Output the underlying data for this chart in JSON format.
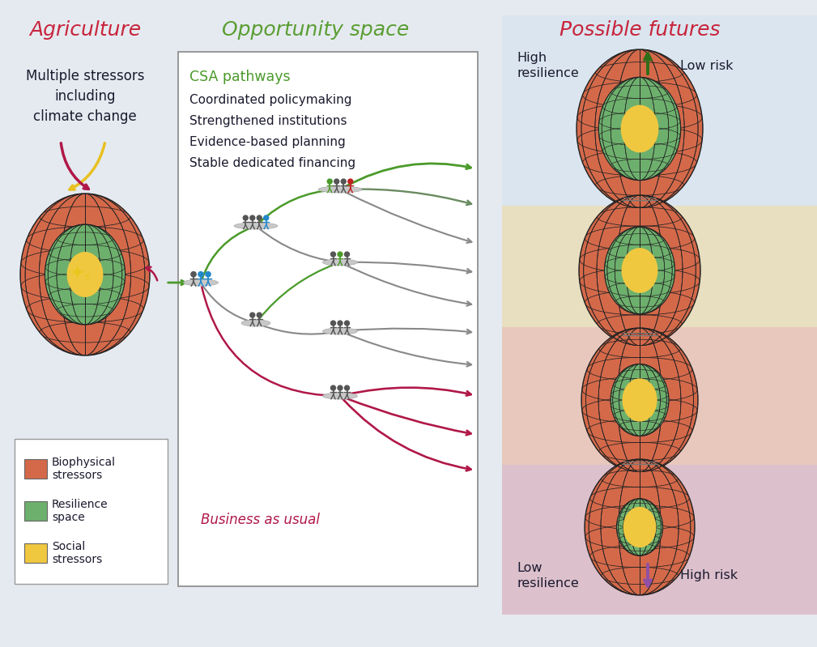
{
  "bg_color": "#e5eaf0",
  "title_agriculture": "Agriculture",
  "title_opportunity": "Opportunity space",
  "title_futures": "Possible futures",
  "title_color_agr": "#c8243c",
  "title_color_opp": "#5a9e32",
  "title_color_fut": "#c8243c",
  "text_stressors": "Multiple stressors\nincluding\nclimate change",
  "csa_label": "CSA pathways",
  "csa_items": [
    "Coordinated policymaking",
    "Strengthened institutions",
    "Evidence-based planning",
    "Stable dedicated financing"
  ],
  "bau_label": "Business as usual",
  "high_resilience": "High\nresilience",
  "low_resilience": "Low\nresilience",
  "low_risk": "Low risk",
  "high_risk": "High risk",
  "legend_items": [
    {
      "color": "#d4694a",
      "label": "Biophysical\nstressors"
    },
    {
      "color": "#6db06d",
      "label": "Resilience\nspace"
    },
    {
      "color": "#f0c840",
      "label": "Social\nstressors"
    }
  ],
  "green_color": "#4a9a2a",
  "dark_green": "#2d6e18",
  "gray_color": "#888888",
  "crimson_color": "#b01848",
  "sphere_outer": "#d4694a",
  "sphere_mid": "#6db06d",
  "sphere_inner": "#f0c840",
  "sphere_line": "#222222",
  "zone1_color": "#dae5ef",
  "zone2_color": "#e8dfc0",
  "zone3_color": "#e8c8bc",
  "zone4_color": "#dcc0cc"
}
